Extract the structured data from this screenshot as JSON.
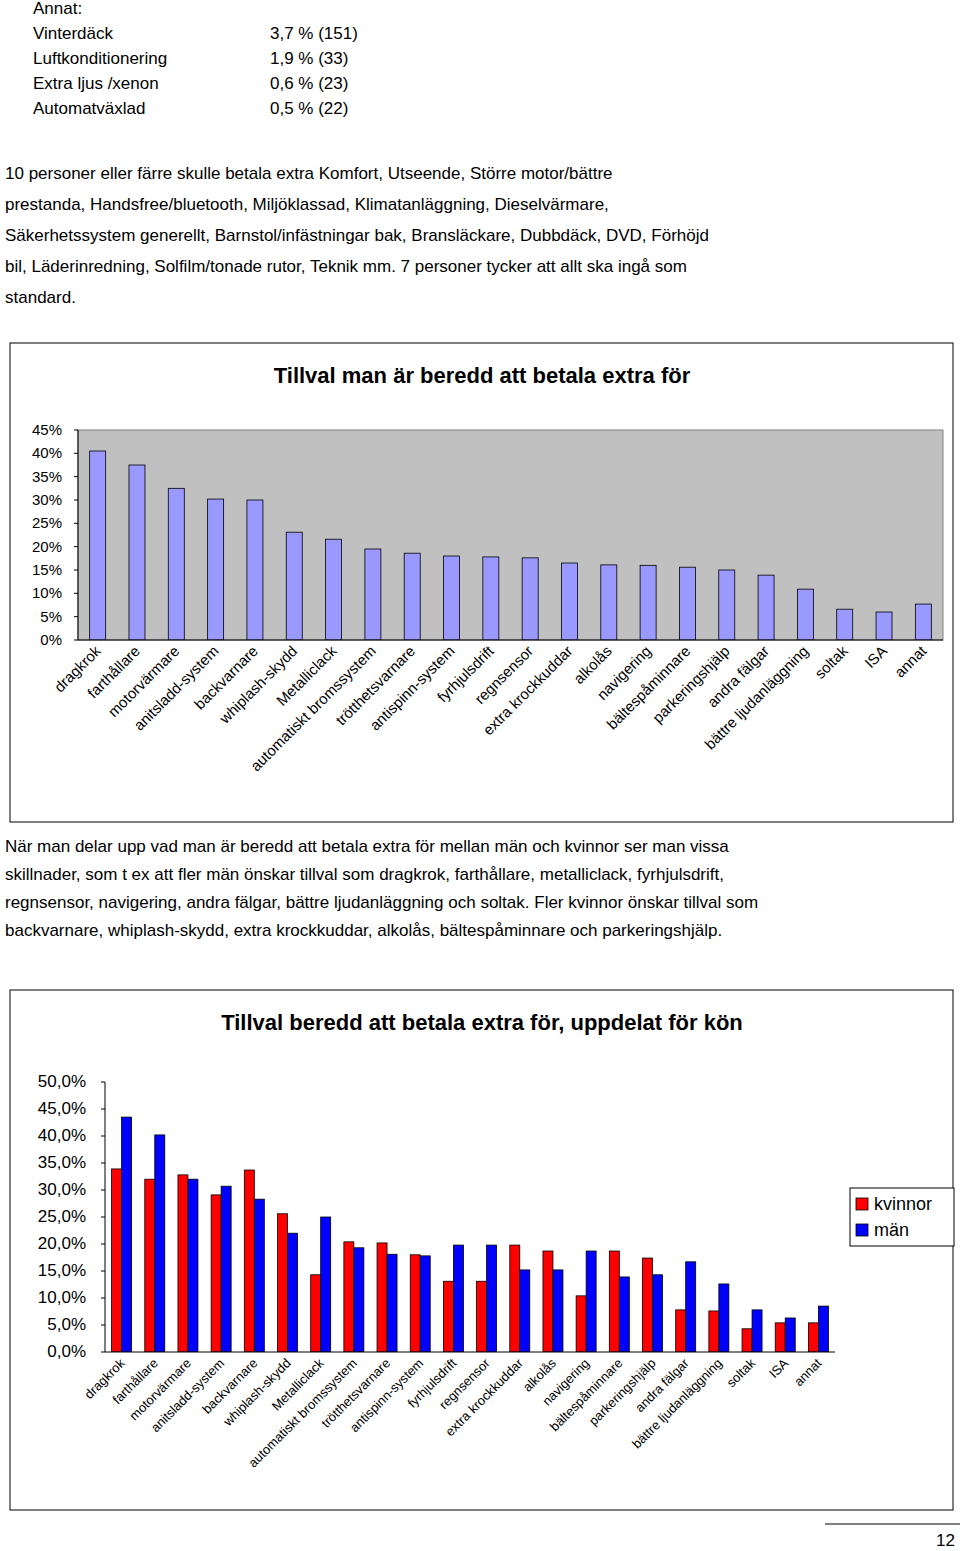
{
  "annat": {
    "title": "Annat:",
    "items": [
      {
        "label": "Vinterdäck",
        "value": "3,7 % (151)"
      },
      {
        "label": "Luftkonditionering",
        "value": "1,9 % (33)"
      },
      {
        "label": "Extra ljus /xenon",
        "value": "0,6 % (23)"
      },
      {
        "label": "Automatväxlad",
        "value": "0,5 % (22)"
      }
    ]
  },
  "paragraphs": [
    [
      "10 personer eller färre skulle betala extra Komfort, Utseende, Större motor/bättre",
      "prestanda, Handsfree/bluetooth, Miljöklassad, Klimatanläggning, Dieselvärmare,",
      "Säkerhetssystem generellt, Barnstol/infästningar bak, Bransläckare, Dubbdäck, DVD, Förhöjd",
      "bil, Läderinredning, Solfilm/tonade rutor, Teknik mm. 7 personer tycker att allt ska ingå som",
      "standard."
    ],
    [
      "När man delar upp vad man är beredd att betala extra för mellan män och kvinnor ser man vissa",
      "skillnader, som t ex att fler män önskar tillval som dragkrok, farthållare, metalliclack, fyrhjulsdrift,",
      "regnsensor, navigering, andra fälgar, bättre ljudanläggning och soltak. Fler kvinnor önskar tillval som",
      "backvarnare, whiplash-skydd, extra krockkuddar, alkolås, bältespåminnare och parkeringshjälp."
    ]
  ],
  "chart_data": [
    {
      "type": "bar",
      "title": "Tillval man är beredd att betala extra för",
      "categories": [
        "dragkrok",
        "farthållare",
        "motorvärmare",
        "anitsladd-system",
        "backvarnare",
        "whiplash-skydd",
        "Metalliclack",
        "automatiskt bromssystem",
        "trötthetsvarnare",
        "antispinn-system",
        "fyrhjulsdrift",
        "regnsensor",
        "extra krockkuddar",
        "alkolås",
        "navigering",
        "bältespåminnare",
        "parkeringshjälp",
        "andra fälgar",
        "bättre ljudanläggning",
        "soltak",
        "ISA",
        "annat"
      ],
      "values": [
        40.5,
        37.5,
        32.5,
        30.2,
        30,
        23.1,
        21.6,
        19.5,
        18.6,
        18,
        17.8,
        17.6,
        16.5,
        16.1,
        16,
        15.6,
        15,
        13.9,
        10.9,
        6.6,
        6,
        7.7
      ],
      "color": "#9999ff",
      "ylim": [
        0,
        45
      ],
      "yticks": [
        {
          "value": 0,
          "label": "0%"
        },
        {
          "value": 5,
          "label": "5%"
        },
        {
          "value": 10,
          "label": "10%"
        },
        {
          "value": 15,
          "label": "15%"
        },
        {
          "value": 20,
          "label": "20%"
        },
        {
          "value": 25,
          "label": "25%"
        },
        {
          "value": 30,
          "label": "30%"
        },
        {
          "value": 35,
          "label": "35%"
        },
        {
          "value": 40,
          "label": "40%"
        },
        {
          "value": 45,
          "label": "45%"
        }
      ],
      "grid": false
    },
    {
      "type": "bar",
      "title": "Tillval beredd att betala extra för, uppdelat för kön",
      "categories": [
        "dragkrok",
        "farthållare",
        "motorvärmare",
        "anitsladd-system",
        "backvarnare",
        "whiplash-skydd",
        "Metalliclack",
        "automatiskt bromssystem",
        "trötthetsvarnare",
        "antispinn-system",
        "fyrhjulsdrift",
        "regnsensor",
        "extra krockkuddar",
        "alkolås",
        "navigering",
        "bältespåminnare",
        "parkeringshjälp",
        "andra fälgar",
        "bättre ljudanläggning",
        "soltak",
        "ISA",
        "annat"
      ],
      "series": [
        {
          "name": "kvinnor",
          "color": "#ff0000",
          "values": [
            33.9,
            32,
            32.8,
            29.1,
            33.7,
            25.6,
            14.3,
            20.4,
            20.2,
            18,
            13.1,
            13.1,
            19.8,
            18.7,
            10.4,
            18.7,
            17.4,
            7.8,
            7.6,
            4.3,
            5.4,
            5.4
          ]
        },
        {
          "name": "män",
          "color": "#0000ff",
          "values": [
            43.5,
            40.2,
            32,
            30.7,
            28.3,
            22,
            25,
            19.3,
            18.1,
            17.8,
            19.8,
            19.8,
            15.2,
            15.2,
            18.7,
            13.9,
            14.3,
            16.7,
            12.6,
            7.8,
            6.3,
            8.5
          ]
        }
      ],
      "ylim": [
        0,
        50
      ],
      "yticks": [
        {
          "value": 0,
          "label": "0,0%"
        },
        {
          "value": 5,
          "label": "5,0%"
        },
        {
          "value": 10,
          "label": "10,0%"
        },
        {
          "value": 15,
          "label": "15,0%"
        },
        {
          "value": 20,
          "label": "20,0%"
        },
        {
          "value": 25,
          "label": "25,0%"
        },
        {
          "value": 30,
          "label": "30,0%"
        },
        {
          "value": 35,
          "label": "35,0%"
        },
        {
          "value": 40,
          "label": "40,0%"
        },
        {
          "value": 45,
          "label": "45,0%"
        },
        {
          "value": 50,
          "label": "50,0%"
        }
      ],
      "grid": false,
      "legend": "right"
    }
  ],
  "page_number": "12"
}
